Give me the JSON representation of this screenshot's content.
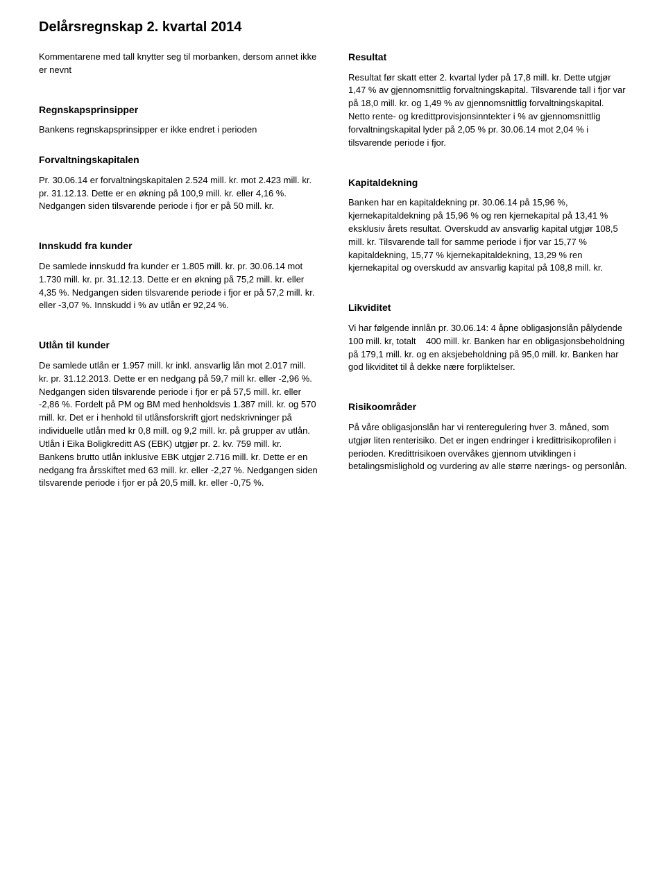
{
  "page": {
    "title": "Delårsregnskap 2. kvartal 2014"
  },
  "left": {
    "intro": {
      "text": "Kommentarene med tall knytter seg til morbanken, dersom annet ikke er nevnt"
    },
    "regnskapsprinsipper": {
      "heading": "Regnskapsprinsipper",
      "text": "Bankens regnskapsprinsipper er ikke endret i perioden"
    },
    "forvaltningskapitalen": {
      "heading": "Forvaltningskapitalen",
      "text": "Pr. 30.06.14 er forvaltningskapitalen 2.524 mill. kr. mot 2.423 mill. kr. pr. 31.12.13. Dette er en økning på 100,9 mill. kr. eller 4,16 %. Nedgangen siden tilsvarende periode i fjor er på 50 mill. kr."
    },
    "innskudd": {
      "heading": "Innskudd fra kunder",
      "text": "De samlede innskudd fra kunder er 1.805 mill. kr. pr. 30.06.14 mot 1.730 mill. kr. pr. 31.12.13. Dette er en økning på 75,2 mill. kr. eller 4,35 %. Nedgangen siden tilsvarende periode i fjor er på 57,2 mill. kr. eller -3,07 %. Innskudd i % av utlån er 92,24 %."
    },
    "utlan": {
      "heading": "Utlån til kunder",
      "text": "De samlede utlån er 1.957 mill. kr inkl. ansvarlig lån mot 2.017 mill. kr. pr. 31.12.2013. Dette er en nedgang på 59,7 mill kr. eller -2,96 %. Nedgangen siden tilsvarende periode i fjor er på 57,5 mill. kr. eller -2,86 %. Fordelt på PM og BM med henholdsvis 1.387 mill. kr. og 570 mill. kr. Det er i henhold til utlånsforskrift gjort nedskrivninger på individuelle utlån med kr 0,8 mill. og 9,2 mill. kr. på grupper av utlån. Utlån i Eika Boligkreditt AS (EBK) utgjør pr. 2. kv. 759 mill. kr. Bankens brutto utlån inklusive EBK utgjør 2.716 mill. kr. Dette er en nedgang fra årsskiftet med 63 mill. kr. eller -2,27 %. Nedgangen siden tilsvarende periode i fjor er på 20,5 mill. kr. eller -0,75 %."
    }
  },
  "right": {
    "resultat": {
      "heading": "Resultat",
      "text": "Resultat før skatt etter 2. kvartal lyder på 17,8 mill. kr. Dette utgjør 1,47 % av gjennomsnittlig forvaltningskapital. Tilsvarende tall i fjor var på 18,0 mill. kr. og 1,49 % av gjennomsnittlig forvaltningskapital. Netto rente- og kredittprovisjonsinntekter i % av gjennomsnittlig forvaltningskapital lyder på 2,05 % pr. 30.06.14 mot 2,04 % i tilsvarende periode i fjor."
    },
    "kapitaldekning": {
      "heading": "Kapitaldekning",
      "text": "Banken har en kapitaldekning pr. 30.06.14 på 15,96 %, kjernekapitaldekning på 15,96 % og ren kjernekapital på 13,41 % eksklusiv årets resultat. Overskudd av ansvarlig kapital utgjør 108,5 mill. kr. Tilsvarende tall for samme periode i fjor var 15,77 % kapitaldekning, 15,77 % kjernekapitaldekning, 13,29 % ren kjernekapital og overskudd av ansvarlig kapital på 108,8 mill. kr."
    },
    "likviditet": {
      "heading": "Likviditet",
      "text": "Vi har følgende innlån pr. 30.06.14: 4 åpne obligasjonslån pålydende 100 mill. kr, totalt    400 mill. kr. Banken har en obligasjonsbeholdning på 179,1 mill. kr. og en aksjebeholdning på 95,0 mill. kr. Banken har god likviditet til å dekke nære forpliktelser."
    },
    "risiko": {
      "heading": "Risikoområder",
      "text": "På våre obligasjonslån har vi renteregulering hver 3. måned, som utgjør liten renterisiko. Det er ingen endringer i kredittrisikoprofilen i perioden. Kredittrisikoen overvåkes gjennom utviklingen i betalingsmislighold og vurdering av alle større nærings- og personlån."
    }
  }
}
